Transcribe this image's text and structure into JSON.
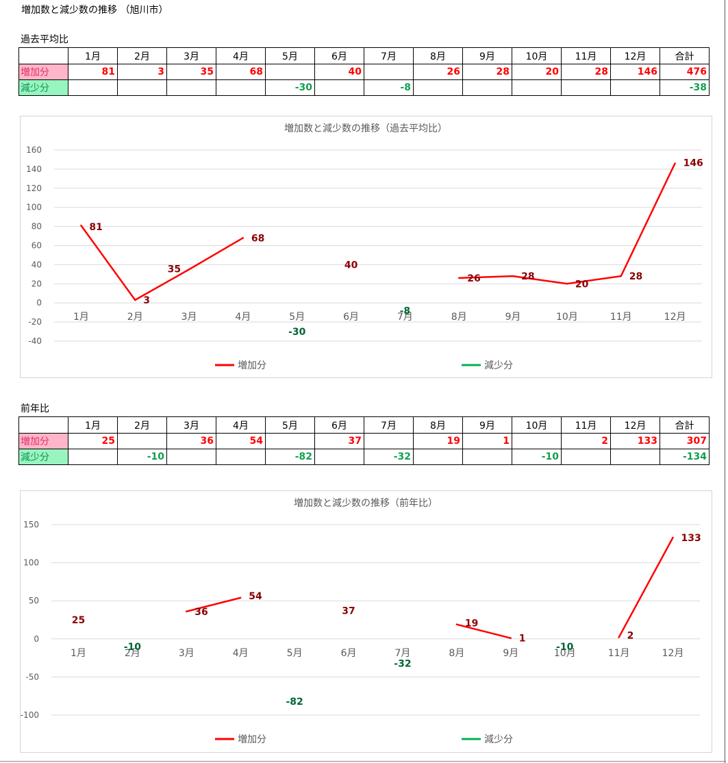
{
  "page": {
    "title": "増加数と減少数の推移 （旭川市）"
  },
  "colors": {
    "increase_line": "#ff0000",
    "increase_label": "#8b0000",
    "decrease_line": "#00b050",
    "decrease_label": "#006633",
    "inc_cell_text": "#ff0000",
    "dec_cell_text": "#10a050",
    "inc_label_bg": "#ffb6c8",
    "dec_label_bg": "#98f5c0",
    "gridline": "#d9d9d9"
  },
  "sections": [
    {
      "label": "過去平均比",
      "table": {
        "headers": [
          "",
          "1月",
          "2月",
          "3月",
          "4月",
          "5月",
          "6月",
          "7月",
          "8月",
          "9月",
          "10月",
          "11月",
          "12月",
          "合計"
        ],
        "rows": [
          {
            "label": "増加分",
            "cells": [
              "81",
              "3",
              "35",
              "68",
              "",
              "40",
              "",
              "26",
              "28",
              "20",
              "28",
              "146",
              "476"
            ]
          },
          {
            "label": "減少分",
            "cells": [
              "",
              "",
              "",
              "",
              "-30",
              "",
              "-8",
              "",
              "",
              "",
              "",
              "",
              "-38"
            ]
          }
        ]
      }
    },
    {
      "label": "前年比",
      "table": {
        "headers": [
          "",
          "1月",
          "2月",
          "3月",
          "4月",
          "5月",
          "6月",
          "7月",
          "8月",
          "9月",
          "10月",
          "11月",
          "12月",
          "合計"
        ],
        "rows": [
          {
            "label": "増加分",
            "cells": [
              "25",
              "",
              "36",
              "54",
              "",
              "37",
              "",
              "19",
              "1",
              "",
              "2",
              "133",
              "307"
            ]
          },
          {
            "label": "減少分",
            "cells": [
              "",
              "-10",
              "",
              "",
              "-82",
              "",
              "-32",
              "",
              "",
              "-10",
              "",
              "",
              "-134"
            ]
          }
        ]
      }
    }
  ],
  "chart_data": [
    {
      "type": "line",
      "title": "増加数と減少数の推移（過去平均比）",
      "categories": [
        "1月",
        "2月",
        "3月",
        "4月",
        "5月",
        "6月",
        "7月",
        "8月",
        "9月",
        "10月",
        "11月",
        "12月"
      ],
      "series": [
        {
          "name": "増加分",
          "values": [
            81,
            3,
            35,
            68,
            null,
            40,
            null,
            26,
            28,
            20,
            28,
            146
          ]
        },
        {
          "name": "減少分",
          "values": [
            null,
            null,
            null,
            null,
            -30,
            null,
            -8,
            null,
            null,
            null,
            null,
            null
          ]
        }
      ],
      "ylim": [
        -40,
        160
      ],
      "yticks": [
        160,
        140,
        120,
        100,
        80,
        60,
        40,
        20,
        0,
        -20,
        -40
      ],
      "grid": true,
      "legend": "bottom"
    },
    {
      "type": "line",
      "title": "増加数と減少数の推移（前年比）",
      "categories": [
        "1月",
        "2月",
        "3月",
        "4月",
        "5月",
        "6月",
        "7月",
        "8月",
        "9月",
        "10月",
        "11月",
        "12月"
      ],
      "series": [
        {
          "name": "増加分",
          "values": [
            25,
            null,
            36,
            54,
            null,
            37,
            null,
            19,
            1,
            null,
            2,
            133
          ]
        },
        {
          "name": "減少分",
          "values": [
            null,
            -10,
            null,
            null,
            -82,
            null,
            -32,
            null,
            null,
            -10,
            null,
            null
          ]
        }
      ],
      "ylim": [
        -100,
        150
      ],
      "yticks": [
        150,
        100,
        50,
        0,
        -50,
        -100
      ],
      "grid": true,
      "legend": "bottom"
    }
  ]
}
